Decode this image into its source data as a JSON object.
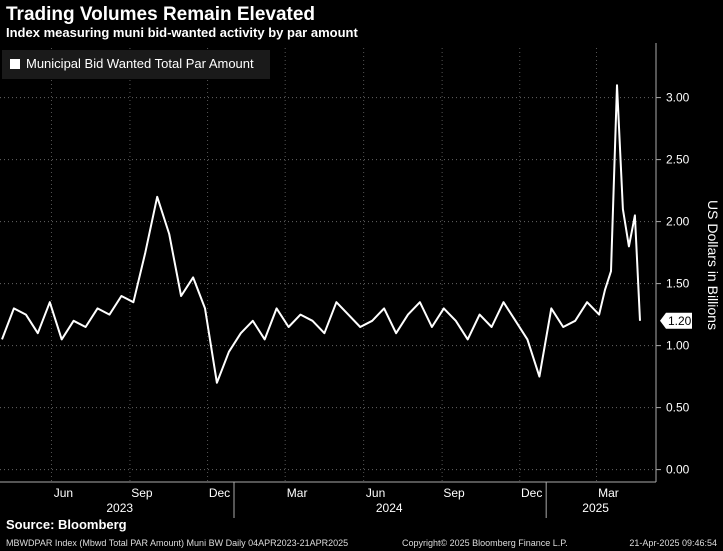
{
  "chart_data": {
    "type": "line",
    "title": "Trading Volumes Remain Elevated",
    "subtitle": "Index measuring muni bid-wanted activity by par amount",
    "ylabel": "US Dollars in Billions",
    "ylim": [
      -0.1,
      3.4
    ],
    "yticks": [
      "0.00",
      "0.50",
      "1.00",
      "1.50",
      "2.00",
      "2.50",
      "3.00"
    ],
    "x_months": [
      "Jun",
      "Sep",
      "Dec",
      "Mar",
      "Jun",
      "Sep",
      "Dec",
      "Mar"
    ],
    "x_years": [
      "2023",
      "2024",
      "2025"
    ],
    "grid": true,
    "legend_placement": "top-left",
    "last_value": "1.20",
    "series": [
      {
        "name": "Municipal Bid Wanted Total Par Amount",
        "color": "#ffffff",
        "x": [
          "2023-04-04",
          "2023-04-18",
          "2023-05-02",
          "2023-05-16",
          "2023-05-30",
          "2023-06-13",
          "2023-06-27",
          "2023-07-11",
          "2023-07-25",
          "2023-08-08",
          "2023-08-22",
          "2023-09-05",
          "2023-09-19",
          "2023-10-03",
          "2023-10-17",
          "2023-10-31",
          "2023-11-14",
          "2023-11-28",
          "2023-12-12",
          "2023-12-26",
          "2024-01-09",
          "2024-01-23",
          "2024-02-06",
          "2024-02-20",
          "2024-03-05",
          "2024-03-19",
          "2024-04-02",
          "2024-04-16",
          "2024-04-30",
          "2024-05-14",
          "2024-05-28",
          "2024-06-11",
          "2024-06-25",
          "2024-07-09",
          "2024-07-23",
          "2024-08-06",
          "2024-08-20",
          "2024-09-03",
          "2024-09-17",
          "2024-10-01",
          "2024-10-15",
          "2024-10-29",
          "2024-11-12",
          "2024-11-26",
          "2024-12-10",
          "2024-12-24",
          "2025-01-07",
          "2025-01-21",
          "2025-02-04",
          "2025-02-18",
          "2025-03-04",
          "2025-03-11",
          "2025-03-18",
          "2025-03-25",
          "2025-04-01",
          "2025-04-08",
          "2025-04-15",
          "2025-04-21"
        ],
        "values": [
          1.05,
          1.3,
          1.25,
          1.1,
          1.35,
          1.05,
          1.2,
          1.15,
          1.3,
          1.25,
          1.4,
          1.35,
          1.75,
          2.2,
          1.9,
          1.4,
          1.55,
          1.3,
          0.7,
          0.95,
          1.1,
          1.2,
          1.05,
          1.3,
          1.15,
          1.25,
          1.2,
          1.1,
          1.35,
          1.25,
          1.15,
          1.2,
          1.3,
          1.1,
          1.25,
          1.35,
          1.15,
          1.3,
          1.2,
          1.05,
          1.25,
          1.15,
          1.35,
          1.2,
          1.05,
          0.75,
          1.3,
          1.15,
          1.2,
          1.35,
          1.25,
          1.45,
          1.6,
          3.1,
          2.1,
          1.8,
          2.05,
          1.2
        ]
      }
    ]
  },
  "source": "Source: Bloomberg",
  "footer_left": "MBWDPAR Index (Mbwd Total PAR Amount) Muni BW  Daily 04APR2023-21APR2025",
  "footer_mid": "Copyright© 2025 Bloomberg Finance L.P.",
  "footer_right": "21-Apr-2025 09:46:54"
}
